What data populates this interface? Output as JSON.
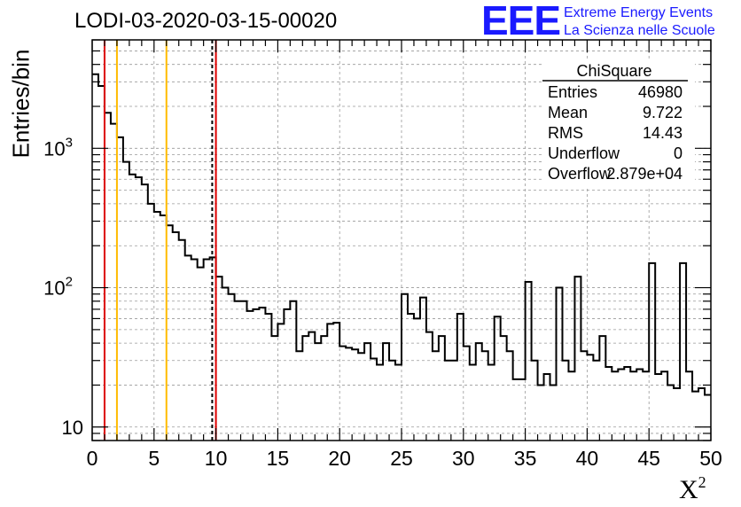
{
  "title": "LODI-03-2020-03-15-00020",
  "logo": {
    "mark": "EEE",
    "line1": "Extreme Energy Events",
    "line2": "La Scienza nelle Scuole",
    "color": "#1a1aff"
  },
  "stats_box": {
    "name": "ChiSquare",
    "rows": [
      {
        "label": "Entries",
        "value": "46980"
      },
      {
        "label": "Mean",
        "value": "9.722"
      },
      {
        "label": "RMS",
        "value": "14.43"
      },
      {
        "label": "Underflow",
        "value": "0"
      },
      {
        "label": "Overflow",
        "value": "2.879e+04"
      }
    ]
  },
  "chart_data": {
    "type": "histogram",
    "xlabel": "X",
    "xlabel_superscript": "2",
    "ylabel": "Entries/bin",
    "xlim": [
      0,
      50
    ],
    "ylim": [
      8,
      6000
    ],
    "y_scale": "log",
    "grid": true,
    "bin_width": 0.5,
    "x_ticks": [
      0,
      5,
      10,
      15,
      20,
      25,
      30,
      35,
      40,
      45,
      50
    ],
    "y_tick_labels": [
      {
        "value": 10,
        "label": "10"
      },
      {
        "value": 100,
        "label": "10",
        "sup": "2"
      },
      {
        "value": 1000,
        "label": "10",
        "sup": "3"
      }
    ],
    "values": [
      3400,
      2800,
      1800,
      1500,
      1200,
      800,
      650,
      620,
      550,
      400,
      350,
      330,
      280,
      250,
      220,
      170,
      160,
      140,
      160,
      165,
      120,
      100,
      90,
      80,
      80,
      68,
      70,
      72,
      65,
      45,
      55,
      70,
      80,
      35,
      45,
      48,
      40,
      45,
      55,
      56,
      38,
      37,
      36,
      34,
      40,
      31,
      28,
      40,
      30,
      28,
      90,
      65,
      60,
      85,
      48,
      35,
      45,
      30,
      30,
      65,
      38,
      28,
      40,
      35,
      28,
      62,
      45,
      35,
      22,
      22,
      110,
      30,
      20,
      24,
      20,
      100,
      30,
      25,
      120,
      35,
      33,
      30,
      45,
      27,
      25,
      26,
      27,
      25,
      26,
      25,
      150,
      24,
      25,
      20,
      19,
      150,
      25,
      18,
      19,
      17
    ],
    "vertical_lines": [
      {
        "x": 1,
        "color": "#dd0000",
        "style": "solid"
      },
      {
        "x": 2,
        "color": "#ffbb00",
        "style": "solid"
      },
      {
        "x": 6,
        "color": "#ffbb00",
        "style": "solid"
      },
      {
        "x": 9.7,
        "color": "#000000",
        "style": "dashed"
      },
      {
        "x": 10,
        "color": "#dd0000",
        "style": "solid"
      }
    ]
  }
}
